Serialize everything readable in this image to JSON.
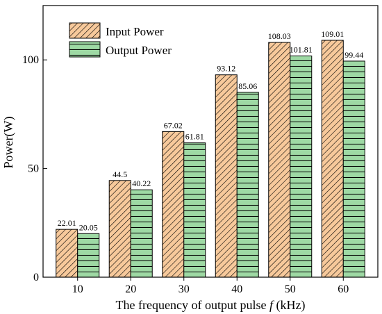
{
  "chart_data": {
    "type": "bar",
    "title": "",
    "xlabel": "The frequency of output pulse f (kHz)",
    "xlabel_parts": {
      "before": "The frequency of output pulse ",
      "italic": "f",
      "after": " (kHz)"
    },
    "ylabel": "Power(W)",
    "categories": [
      "10",
      "20",
      "30",
      "40",
      "50",
      "60"
    ],
    "series": [
      {
        "name": "Input Power",
        "values": [
          22.01,
          44.5,
          67.02,
          93.12,
          108.03,
          109.01
        ],
        "labels": [
          "22.01",
          "44.5",
          "67.02",
          "93.12",
          "108.03",
          "109.01"
        ],
        "color": "#F7C99B",
        "pattern": "diagonal-hatch"
      },
      {
        "name": "Output Power",
        "values": [
          20.05,
          40.22,
          61.81,
          85.06,
          101.81,
          99.44
        ],
        "labels": [
          "20.05",
          "40.22",
          "61.81",
          "85.06",
          "101.81",
          "99.44"
        ],
        "color": "#9ED9A4",
        "pattern": "horizontal-lines"
      }
    ],
    "ylim": [
      0,
      125
    ],
    "yticks": [
      "0",
      "50",
      "100"
    ],
    "grid": false,
    "legend_position": "top-left"
  }
}
